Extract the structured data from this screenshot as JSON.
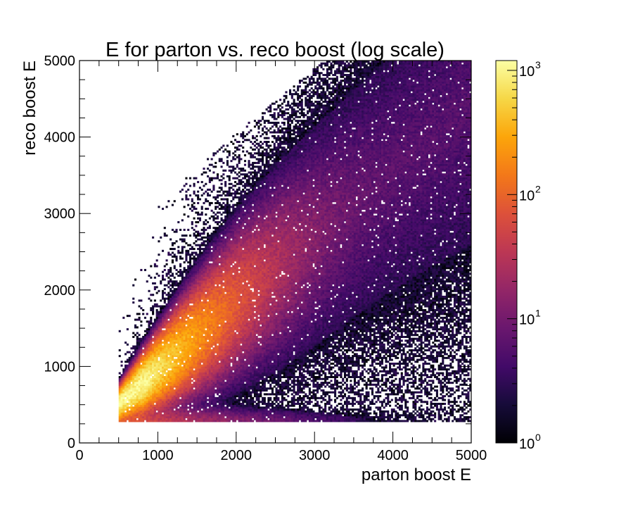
{
  "chart_data": {
    "type": "heatmap",
    "title": "E for parton vs. reco boost (log scale)",
    "xlabel": "parton boost E",
    "ylabel": "reco boost E",
    "xlim": [
      0,
      5000
    ],
    "ylim": [
      0,
      5000
    ],
    "x_ticks": [
      "0",
      "1000",
      "2000",
      "3000",
      "4000",
      "5000"
    ],
    "y_ticks": [
      "0",
      "1000",
      "2000",
      "3000",
      "4000",
      "5000"
    ],
    "x_tick_values": [
      0,
      1000,
      2000,
      3000,
      4000,
      5000
    ],
    "y_tick_values": [
      0,
      1000,
      2000,
      3000,
      4000,
      5000
    ],
    "colorbar": {
      "scale": "log",
      "range": [
        1,
        1200
      ],
      "colormap": "inferno",
      "tick_values": [
        1,
        10,
        100,
        1000
      ],
      "tick_labels": [
        {
          "base": "10",
          "exp": "0"
        },
        {
          "base": "10",
          "exp": "1"
        },
        {
          "base": "10",
          "exp": "2"
        },
        {
          "base": "10",
          "exp": "3"
        }
      ]
    },
    "distribution": {
      "x_min": 500,
      "y_floor": 270,
      "peak": {
        "x": 800,
        "y": 780,
        "count": 1100
      },
      "ridge_points": [
        [
          600,
          600
        ],
        [
          1000,
          950
        ],
        [
          2000,
          1850
        ],
        [
          3000,
          2700
        ]
      ],
      "ridge_count_at_3000": 8,
      "floor_band_counts": {
        "x_1000": 40,
        "x_3000": 4
      }
    },
    "grid": false,
    "legend": "none"
  }
}
